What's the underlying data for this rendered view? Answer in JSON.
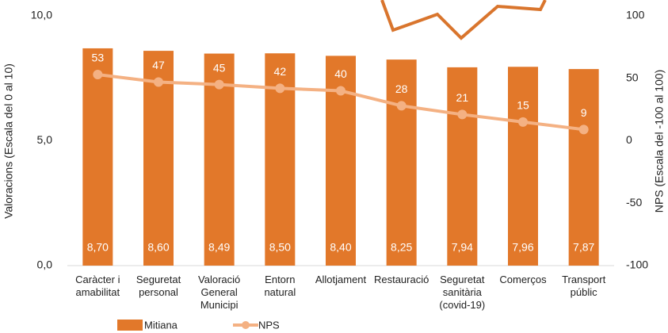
{
  "chart_data": {
    "type": "bar-line",
    "categories": [
      "Caràcter i\namabilitat",
      "Seguretat\npersonal",
      "Valoració\nGeneral\nMunicipi",
      "Entorn\nnatural",
      "Allotjament",
      "Restauració",
      "Seguretat\nsanitària\n(covid-19)",
      "Comerços",
      "Transport\npúblic"
    ],
    "series": [
      {
        "name": "Mitiana",
        "type": "bar",
        "color": "#e2782a",
        "values": [
          8.7,
          8.6,
          8.49,
          8.5,
          8.4,
          8.25,
          7.94,
          7.96,
          7.87
        ],
        "value_labels": [
          "8,70",
          "8,60",
          "8,49",
          "8,50",
          "8,40",
          "8,25",
          "7,94",
          "7,96",
          "7,87"
        ]
      },
      {
        "name": "NPS",
        "type": "line",
        "axis": "y2",
        "color": "#f4b183",
        "values": [
          53,
          47,
          45,
          42,
          40,
          28,
          21,
          15,
          9
        ]
      }
    ],
    "ylabel": "Valoracions (Escala  del 0 al 10)",
    "y2label": "NPS (Escala  del -100 al 100)",
    "ylim": [
      0,
      10
    ],
    "yticks": [
      {
        "value": 0,
        "label": "0,0"
      },
      {
        "value": 5,
        "label": "5,0"
      },
      {
        "value": 10,
        "label": "10,0"
      }
    ],
    "y2lim": [
      -100,
      100
    ],
    "y2ticks": [
      -100,
      -50,
      0,
      50,
      100
    ]
  }
}
